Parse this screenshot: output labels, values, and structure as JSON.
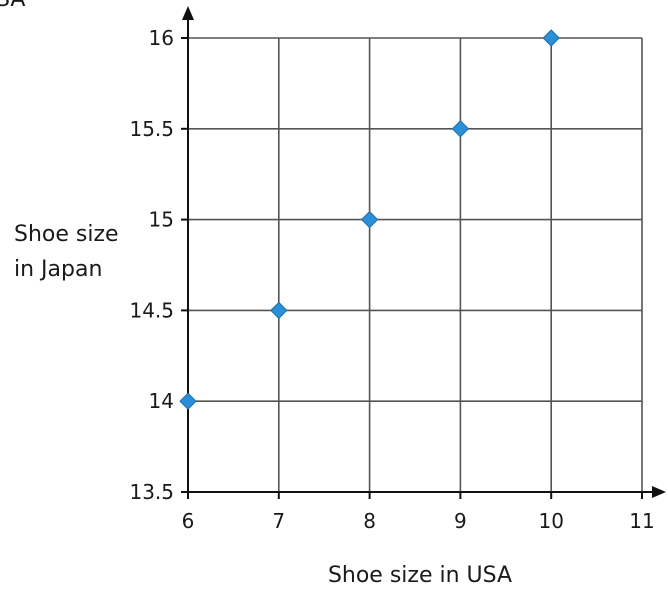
{
  "top_left_fragment": "SA",
  "chart_data": {
    "type": "scatter",
    "title": "",
    "xlabel": "Shoe size in USA",
    "ylabel_lines": [
      "Shoe size",
      "in Japan"
    ],
    "xlim": [
      6,
      11
    ],
    "ylim": [
      13.5,
      16
    ],
    "x_ticks": [
      6,
      7,
      8,
      9,
      10,
      11
    ],
    "y_ticks": [
      13.5,
      14,
      14.5,
      15,
      15.5,
      16
    ],
    "grid": true,
    "marker": "diamond",
    "points": [
      {
        "x": 6,
        "y": 14
      },
      {
        "x": 7,
        "y": 14.5
      },
      {
        "x": 8,
        "y": 15
      },
      {
        "x": 9,
        "y": 15.5
      },
      {
        "x": 10,
        "y": 16
      }
    ],
    "colors": {
      "marker": "#2b8fd6",
      "marker_stroke": "#1a6fb0",
      "grid": "#555555",
      "axis": "#111111"
    }
  }
}
